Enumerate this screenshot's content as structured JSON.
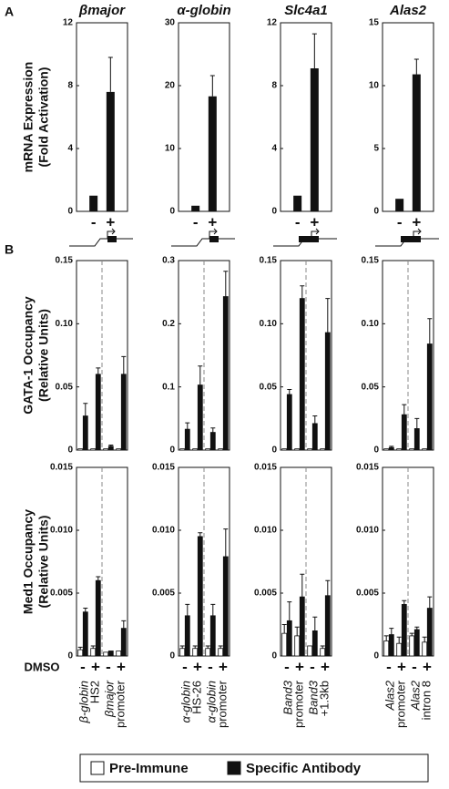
{
  "chart_data": [
    {
      "type": "bar",
      "panel": "A",
      "title": "βmajor",
      "ylabel": [
        "mRNA Expression",
        "(Fold Activation)"
      ],
      "categories": [
        "-",
        "+"
      ],
      "values": [
        1,
        7.6
      ],
      "errors": [
        null,
        2.2
      ],
      "color": "#111111",
      "ylim": [
        0,
        12
      ],
      "yticks": [
        0,
        4,
        8,
        12
      ]
    },
    {
      "type": "bar",
      "title": "α-globin",
      "categories": [
        "-",
        "+"
      ],
      "values": [
        0.9,
        18.3
      ],
      "errors": [
        null,
        3.3
      ],
      "color": "#111111",
      "ylim": [
        0,
        30
      ],
      "yticks": [
        0,
        10,
        20,
        30
      ]
    },
    {
      "type": "bar",
      "title": "Slc4a1",
      "categories": [
        "-",
        "+"
      ],
      "values": [
        1,
        9.1
      ],
      "errors": [
        null,
        2.2
      ],
      "color": "#111111",
      "ylim": [
        0,
        12
      ],
      "yticks": [
        0,
        4,
        8,
        12
      ]
    },
    {
      "type": "bar",
      "title": "Alas2",
      "categories": [
        "-",
        "+"
      ],
      "values": [
        1,
        10.9
      ],
      "errors": [
        null,
        1.2
      ],
      "color": "#111111",
      "ylim": [
        0,
        15
      ],
      "yticks": [
        0,
        5,
        10,
        15
      ]
    },
    {
      "type": "grouped_bar",
      "panel": "B",
      "ylabel": [
        "GATA-1 Occupancy",
        "(Relative Units)"
      ],
      "ylim": [
        0,
        0.15
      ],
      "yticks": [
        0,
        0.05,
        {
          "value": 0.1,
          "label": "0.10"
        },
        0.15
      ],
      "series": [
        {
          "name": "Pre-Immune",
          "color": "#ffffff",
          "values": [
            0.001,
            0.001,
            0.001,
            0.001
          ],
          "errors": [
            null,
            null,
            null,
            null
          ]
        },
        {
          "name": "Specific Antibody",
          "color": "#111111",
          "values": [
            0.027,
            0.06,
            0.003,
            0.06
          ],
          "errors": [
            0.01,
            0.005,
            0.001,
            0.014
          ]
        }
      ]
    },
    {
      "type": "grouped_bar",
      "ylim": [
        0,
        0.3
      ],
      "yticks": [
        0,
        0.1,
        0.2,
        0.3
      ],
      "series": [
        {
          "name": "Pre-Immune",
          "color": "#ffffff",
          "values": [
            0.002,
            0.002,
            0.002,
            0.002
          ],
          "errors": [
            null,
            null,
            null,
            null
          ]
        },
        {
          "name": "Specific Antibody",
          "color": "#111111",
          "values": [
            0.033,
            0.103,
            0.028,
            0.243
          ],
          "errors": [
            0.01,
            0.03,
            0.007,
            0.04
          ]
        }
      ]
    },
    {
      "type": "grouped_bar",
      "ylim": [
        0,
        0.15
      ],
      "yticks": [
        0,
        0.05,
        {
          "value": 0.1,
          "label": "0.10"
        },
        0.15
      ],
      "series": [
        {
          "name": "Pre-Immune",
          "color": "#ffffff",
          "values": [
            0.001,
            0.001,
            0.001,
            0.001
          ],
          "errors": [
            null,
            null,
            null,
            null
          ]
        },
        {
          "name": "Specific Antibody",
          "color": "#111111",
          "values": [
            0.044,
            0.12,
            0.021,
            0.093
          ],
          "errors": [
            0.004,
            0.01,
            0.006,
            0.027
          ]
        }
      ]
    },
    {
      "type": "grouped_bar",
      "ylim": [
        0,
        0.15
      ],
      "yticks": [
        0,
        0.05,
        {
          "value": 0.1,
          "label": "0.10"
        },
        0.15
      ],
      "series": [
        {
          "name": "Pre-Immune",
          "color": "#ffffff",
          "values": [
            0.001,
            0.001,
            0.001,
            0.001
          ],
          "errors": [
            null,
            null,
            null,
            null
          ]
        },
        {
          "name": "Specific Antibody",
          "color": "#111111",
          "values": [
            0.002,
            0.028,
            0.017,
            0.084
          ],
          "errors": [
            0.001,
            0.008,
            0.008,
            0.02
          ]
        }
      ]
    },
    {
      "type": "grouped_bar",
      "ylabel": [
        "Med1 Occupancy",
        "(Relative Units)"
      ],
      "xlabel": "DMSO",
      "categories": [
        "-",
        "+",
        "-",
        "+"
      ],
      "groups": [
        [
          "β-globin",
          "HS2"
        ],
        [
          "βmajor",
          "promoter"
        ]
      ],
      "ylim": [
        0,
        0.015
      ],
      "yticks": [
        0,
        0.005,
        {
          "value": 0.01,
          "label": "0.010"
        },
        0.015
      ],
      "series": [
        {
          "name": "Pre-Immune",
          "color": "#ffffff",
          "values": [
            0.0005,
            0.0006,
            0.0003,
            0.0004
          ],
          "errors": [
            0.0002,
            0.0002,
            null,
            null
          ]
        },
        {
          "name": "Specific Antibody",
          "color": "#111111",
          "values": [
            0.0035,
            0.006,
            0.0004,
            0.0022
          ],
          "errors": [
            0.0003,
            0.0003,
            null,
            0.0006
          ]
        }
      ]
    },
    {
      "type": "grouped_bar",
      "categories": [
        "-",
        "+",
        "-",
        "+"
      ],
      "groups": [
        [
          "α-globin",
          "HS-26"
        ],
        [
          "α-globin",
          "promoter"
        ]
      ],
      "ylim": [
        0,
        0.015
      ],
      "yticks": [
        0,
        0.005,
        {
          "value": 0.01,
          "label": "0.010"
        },
        0.015
      ],
      "series": [
        {
          "name": "Pre-Immune",
          "color": "#ffffff",
          "values": [
            0.0006,
            0.0006,
            0.0006,
            0.0006
          ],
          "errors": [
            0.0002,
            0.0002,
            0.0002,
            0.0002
          ]
        },
        {
          "name": "Specific Antibody",
          "color": "#111111",
          "values": [
            0.0032,
            0.0095,
            0.0032,
            0.0079
          ],
          "errors": [
            0.0009,
            0.0003,
            0.0009,
            0.0022
          ]
        }
      ]
    },
    {
      "type": "grouped_bar",
      "categories": [
        "-",
        "+",
        "-",
        "+"
      ],
      "groups": [
        [
          "Band3",
          "promoter"
        ],
        [
          "Band3",
          "+1.3kb"
        ]
      ],
      "ylim": [
        0,
        0.015
      ],
      "yticks": [
        0,
        0.005,
        {
          "value": 0.01,
          "label": "0.010"
        },
        0.015
      ],
      "series": [
        {
          "name": "Pre-Immune",
          "color": "#ffffff",
          "values": [
            0.0018,
            0.0016,
            0.0008,
            0.0006
          ],
          "errors": [
            0.0007,
            0.0007,
            null,
            0.0002
          ]
        },
        {
          "name": "Specific Antibody",
          "color": "#111111",
          "values": [
            0.0028,
            0.0047,
            0.002,
            0.0048
          ],
          "errors": [
            0.0015,
            0.0018,
            0.0011,
            0.0012
          ]
        }
      ]
    },
    {
      "type": "grouped_bar",
      "categories": [
        "-",
        "+",
        "-",
        "+"
      ],
      "groups": [
        [
          "Alas2",
          "promoter"
        ],
        [
          "Alas2",
          "intron 8"
        ]
      ],
      "ylim": [
        0,
        0.015
      ],
      "yticks": [
        0,
        0.005,
        {
          "value": 0.01,
          "label": "0.010"
        },
        0.015
      ],
      "series": [
        {
          "name": "Pre-Immune",
          "color": "#ffffff",
          "values": [
            0.0012,
            0.001,
            0.0016,
            0.0011
          ],
          "errors": [
            0.0004,
            0.0005,
            0.0002,
            0.0004
          ]
        },
        {
          "name": "Specific Antibody",
          "color": "#111111",
          "values": [
            0.0017,
            0.0041,
            0.0021,
            0.0038
          ],
          "errors": [
            0.0005,
            0.0003,
            0.0002,
            0.0009
          ]
        }
      ]
    }
  ]
}
